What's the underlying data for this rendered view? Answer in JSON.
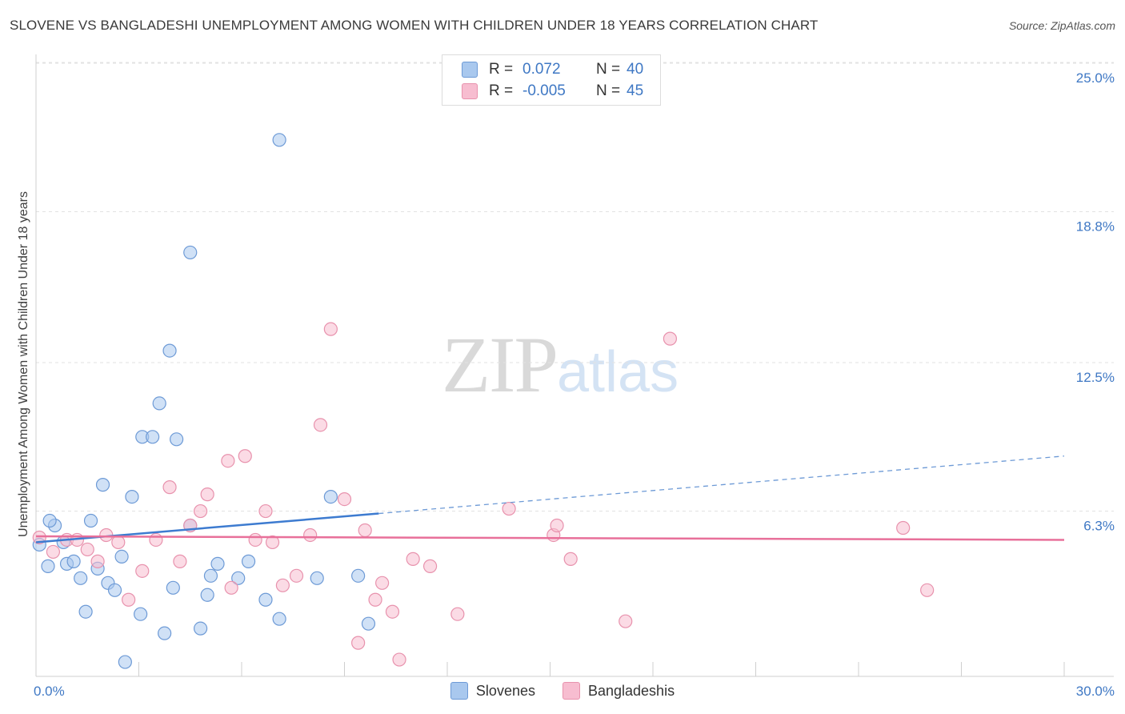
{
  "title": "SLOVENE VS BANGLADESHI UNEMPLOYMENT AMONG WOMEN WITH CHILDREN UNDER 18 YEARS CORRELATION CHART",
  "source": "Source: ZipAtlas.com",
  "watermark": {
    "zip": "ZIP",
    "atlas": "atlas"
  },
  "legend_top": {
    "rows": [
      {
        "r_label": "R =",
        "r_value": "0.072",
        "n_label": "N =",
        "n_value": "40",
        "color": "#a9c8ee",
        "border": "#6d9ad6"
      },
      {
        "r_label": "R =",
        "r_value": "-0.005",
        "n_label": "N =",
        "n_value": "45",
        "color": "#f7bdd0",
        "border": "#e892ad"
      }
    ]
  },
  "legend_bottom": {
    "items": [
      {
        "label": "Slovenes",
        "color": "#a9c8ee",
        "border": "#6d9ad6"
      },
      {
        "label": "Bangladeshis",
        "color": "#f7bdd0",
        "border": "#e892ad"
      }
    ]
  },
  "chart_data": {
    "type": "scatter",
    "title": "SLOVENE VS BANGLADESHI UNEMPLOYMENT AMONG WOMEN WITH CHILDREN UNDER 18 YEARS CORRELATION CHART",
    "xlabel": "",
    "ylabel": "Unemployment Among Women with Children Under 18 years",
    "xlim": [
      0,
      30
    ],
    "ylim": [
      0,
      25
    ],
    "x_tick_labels": [
      {
        "value": 0,
        "label": "0.0%"
      },
      {
        "value": 30,
        "label": "30.0%"
      }
    ],
    "y_tick_labels": [
      {
        "value": 6.3,
        "label": "6.3%"
      },
      {
        "value": 12.5,
        "label": "12.5%"
      },
      {
        "value": 18.8,
        "label": "18.8%"
      },
      {
        "value": 25.0,
        "label": "25.0%"
      }
    ],
    "grid": true,
    "legend_placement": "top-center",
    "series": [
      {
        "name": "Slovenes",
        "color": "#6d9ad6",
        "fill": "#a9c8ee",
        "trend": {
          "x0": 0,
          "y0": 5.6,
          "x1": 10,
          "y1": 6.8,
          "dash_x1": 30,
          "dash_y1": 9.2
        },
        "points": [
          [
            0.1,
            5.5
          ],
          [
            0.35,
            4.6
          ],
          [
            0.55,
            6.3
          ],
          [
            0.8,
            5.6
          ],
          [
            0.9,
            4.7
          ],
          [
            1.1,
            4.8
          ],
          [
            1.3,
            4.1
          ],
          [
            1.45,
            2.7
          ],
          [
            1.6,
            6.5
          ],
          [
            1.8,
            4.5
          ],
          [
            1.95,
            8.0
          ],
          [
            2.1,
            3.9
          ],
          [
            2.3,
            3.6
          ],
          [
            2.5,
            5.0
          ],
          [
            2.6,
            0.6
          ],
          [
            2.8,
            7.5
          ],
          [
            3.1,
            10.0
          ],
          [
            3.05,
            2.6
          ],
          [
            3.4,
            10.0
          ],
          [
            3.6,
            11.4
          ],
          [
            3.75,
            1.8
          ],
          [
            3.9,
            13.6
          ],
          [
            4.0,
            3.7
          ],
          [
            4.1,
            9.9
          ],
          [
            4.5,
            6.3
          ],
          [
            4.5,
            17.7
          ],
          [
            4.8,
            2.0
          ],
          [
            5.0,
            3.4
          ],
          [
            5.1,
            4.2
          ],
          [
            5.3,
            4.7
          ],
          [
            5.9,
            4.1
          ],
          [
            6.2,
            4.8
          ],
          [
            6.7,
            3.2
          ],
          [
            7.1,
            2.4
          ],
          [
            7.1,
            22.4
          ],
          [
            8.2,
            4.1
          ],
          [
            8.6,
            7.5
          ],
          [
            9.4,
            4.2
          ],
          [
            9.7,
            2.2
          ],
          [
            0.4,
            6.5
          ]
        ]
      },
      {
        "name": "Bangladeshis",
        "color": "#e892ad",
        "fill": "#f7bdd0",
        "trend": {
          "x0": 0,
          "y0": 5.85,
          "x1": 30,
          "y1": 5.7
        },
        "points": [
          [
            0.1,
            5.8
          ],
          [
            0.5,
            5.2
          ],
          [
            0.9,
            5.7
          ],
          [
            1.2,
            5.7
          ],
          [
            1.5,
            5.3
          ],
          [
            1.8,
            4.8
          ],
          [
            2.05,
            5.9
          ],
          [
            2.4,
            5.6
          ],
          [
            2.7,
            3.2
          ],
          [
            3.1,
            4.4
          ],
          [
            3.5,
            5.7
          ],
          [
            3.9,
            7.9
          ],
          [
            4.2,
            4.8
          ],
          [
            4.5,
            6.3
          ],
          [
            4.8,
            6.9
          ],
          [
            5.0,
            7.6
          ],
          [
            5.6,
            9.0
          ],
          [
            5.7,
            3.7
          ],
          [
            6.1,
            9.2
          ],
          [
            6.4,
            5.7
          ],
          [
            6.7,
            6.9
          ],
          [
            6.9,
            5.6
          ],
          [
            7.2,
            3.8
          ],
          [
            7.6,
            4.2
          ],
          [
            8.0,
            5.9
          ],
          [
            8.3,
            10.5
          ],
          [
            8.6,
            14.5
          ],
          [
            9.0,
            7.4
          ],
          [
            9.4,
            1.4
          ],
          [
            9.6,
            6.1
          ],
          [
            9.9,
            3.2
          ],
          [
            10.1,
            3.9
          ],
          [
            10.4,
            2.7
          ],
          [
            10.6,
            0.7
          ],
          [
            11.0,
            4.9
          ],
          [
            11.5,
            4.6
          ],
          [
            12.3,
            2.6
          ],
          [
            13.8,
            7.0
          ],
          [
            15.1,
            5.9
          ],
          [
            15.2,
            6.3
          ],
          [
            15.6,
            4.9
          ],
          [
            17.2,
            2.3
          ],
          [
            18.5,
            14.1
          ],
          [
            25.3,
            6.2
          ],
          [
            26.0,
            3.6
          ]
        ]
      }
    ]
  },
  "axis_labels": {
    "ylabel": "Unemployment Among Women with Children Under 18 years"
  }
}
